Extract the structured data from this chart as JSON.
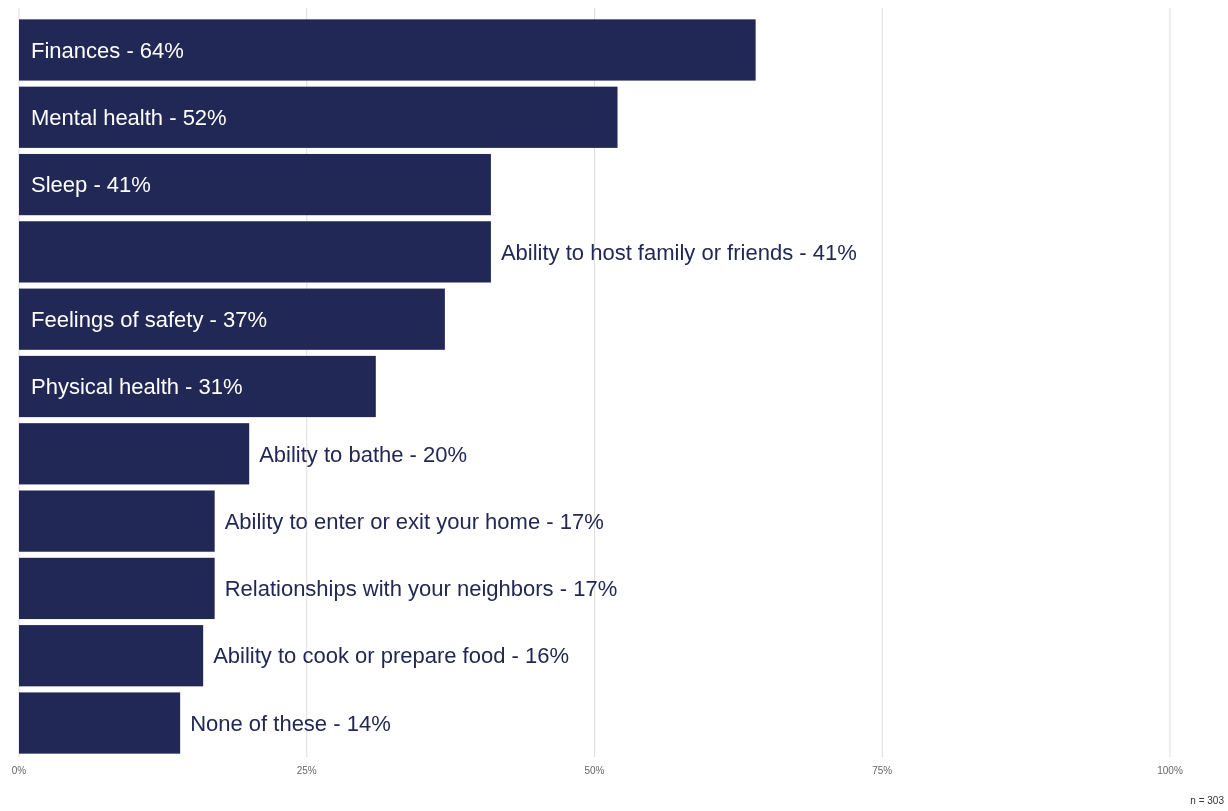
{
  "chart_data": {
    "type": "bar",
    "orientation": "horizontal",
    "categories": [
      "Finances - 64%",
      "Mental health - 52%",
      "Sleep - 41%",
      "Ability to host family or friends - 41%",
      "Feelings of safety - 37%",
      "Physical health - 31%",
      "Ability to bathe - 20%",
      "Ability to enter or exit your home - 17%",
      "Relationships with your neighbors - 17%",
      "Ability to cook or prepare food - 16%",
      "None of these - 14%"
    ],
    "values": [
      64,
      52,
      41,
      41,
      37,
      31,
      20,
      17,
      17,
      16,
      14
    ],
    "color": "#222855",
    "xlim": [
      0,
      100
    ],
    "xticks": [
      {
        "value": 0,
        "label": "0%"
      },
      {
        "value": 25,
        "label": "25%"
      },
      {
        "value": 50,
        "label": "50%"
      },
      {
        "value": 75,
        "label": "75%"
      },
      {
        "value": 100,
        "label": "100%"
      }
    ],
    "grid": "x",
    "annotations": [
      "n = 303"
    ]
  }
}
